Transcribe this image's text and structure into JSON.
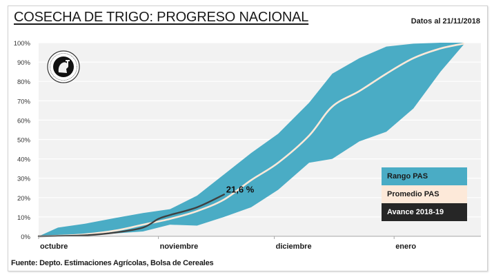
{
  "header": {
    "title": "COSECHA DE TRIGO: PROGRESO NACIONAL",
    "date_label": "Datos al 21/11/2018"
  },
  "footer": {
    "source": "Fuente: Depto. Estimaciones Agrícolas,  Bolsa de Cereales"
  },
  "logo": {
    "icon": "institution-seal-icon"
  },
  "colors": {
    "range": "#4aacc5",
    "average": "#fde9d9",
    "progress": "#404040",
    "plot_bg": "#f2f2f2",
    "grid": "#ffffff"
  },
  "chart_data": {
    "type": "area",
    "title": "COSECHA DE TRIGO: PROGRESO NACIONAL",
    "xlabel": "",
    "ylabel": "",
    "x_unit": "days since October 1",
    "xlim": [
      0,
      113
    ],
    "ylim": [
      0,
      100
    ],
    "y_ticks": [
      0,
      10,
      20,
      30,
      40,
      50,
      60,
      70,
      80,
      90,
      100
    ],
    "y_tick_labels": [
      "0%",
      "10%",
      "20%",
      "30%",
      "40%",
      "50%",
      "60%",
      "70%",
      "80%",
      "90%",
      "100%"
    ],
    "x_ticks": [
      0,
      31,
      61,
      92
    ],
    "x_tick_labels": [
      "octubre",
      "noviembre",
      "diciembre",
      "enero"
    ],
    "grid": "horizontal",
    "legend_position": "bottom-right",
    "legend": [
      "Rango PAS",
      "Promedio PAS",
      "Avance 2018-19"
    ],
    "series": [
      {
        "name": "Rango PAS",
        "kind": "band",
        "x": [
          0,
          5,
          12,
          20,
          27,
          34,
          41,
          48,
          55,
          62,
          70,
          76,
          83,
          90,
          97,
          104,
          110
        ],
        "upper": [
          0,
          4.5,
          6.5,
          9.5,
          12,
          14,
          21,
          32,
          43,
          53,
          69,
          84,
          92,
          98,
          99.5,
          100,
          100
        ],
        "lower": [
          0,
          0.2,
          0.5,
          1.5,
          2.5,
          6,
          5.5,
          10,
          15,
          24,
          38,
          40,
          49,
          54,
          66,
          85,
          99
        ]
      },
      {
        "name": "Promedio PAS",
        "kind": "line",
        "x": [
          0,
          5,
          12,
          20,
          27,
          34,
          41,
          48,
          55,
          62,
          70,
          76,
          83,
          90,
          97,
          104,
          110
        ],
        "values": [
          0,
          0.3,
          1,
          3,
          6,
          9,
          13,
          19,
          29,
          38,
          52,
          67,
          75,
          84,
          92,
          97,
          99.5
        ]
      },
      {
        "name": "Avance 2018-19",
        "kind": "line",
        "x": [
          0,
          5,
          12,
          20,
          27,
          31,
          34,
          41,
          48
        ],
        "values": [
          0,
          0.2,
          0.5,
          2,
          4.5,
          9,
          11,
          15,
          21.6
        ]
      }
    ],
    "annotations": [
      {
        "text": "21,6 %",
        "x": 48,
        "y": 21.6
      }
    ]
  }
}
